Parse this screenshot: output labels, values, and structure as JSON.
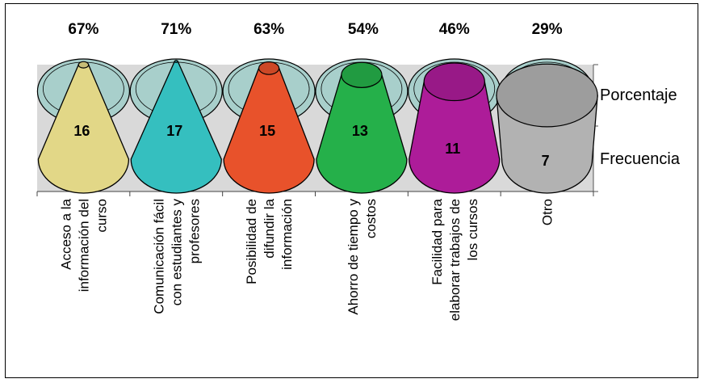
{
  "chart_data": {
    "type": "bar",
    "style": "3d-cone",
    "categories": [
      [
        "Acceso a la",
        "información del",
        "curso"
      ],
      [
        "Comunicación fácil",
        "con estudiantes y",
        "profesores"
      ],
      [
        "Posibilidad de",
        "difundir la",
        "información"
      ],
      [
        "Ahorro de tiempo y",
        "costos"
      ],
      [
        "Facilidad para",
        "elaborar trabajos de",
        "los cursos"
      ],
      [
        "Otro"
      ]
    ],
    "series": [
      {
        "name": "Porcentaje",
        "values": [
          "67%",
          "71%",
          "63%",
          "54%",
          "46%",
          "29%"
        ],
        "color": "#a8cfcb"
      },
      {
        "name": "Frecuencia",
        "values": [
          16,
          17,
          15,
          13,
          11,
          7
        ]
      }
    ],
    "frequency_max": 17,
    "cone_colors": [
      "#e2d787",
      "#35bfbf",
      "#e8522b",
      "#25b04a",
      "#ad1c99",
      "#b2b2b2"
    ],
    "legend_placement": "right"
  }
}
